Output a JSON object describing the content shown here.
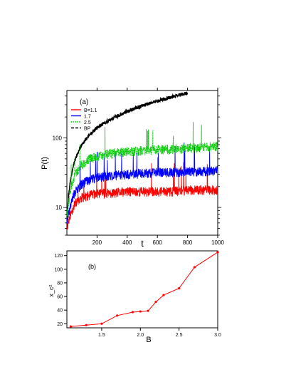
{
  "chart_data": [
    {
      "panel_label": "(a)",
      "type": "line",
      "xlabel": "t",
      "ylabel": "P(t)",
      "x_scale": "linear",
      "y_scale": "log",
      "xlim": [
        0,
        1000
      ],
      "ylim": [
        4,
        480
      ],
      "x_ticks": [
        200,
        400,
        600,
        800,
        1000
      ],
      "y_ticks_labeled": [
        10,
        100
      ],
      "grid": false,
      "legend_position": "top-left",
      "series": [
        {
          "name": "B=1.1",
          "color": "#ff0000",
          "style": "solid",
          "x": [
            0,
            50,
            100,
            150,
            200,
            300,
            400,
            500,
            600,
            700,
            800,
            900,
            1000
          ],
          "y": [
            5,
            11,
            14,
            15,
            16,
            16,
            17,
            17,
            17,
            17,
            18,
            18,
            18
          ]
        },
        {
          "name": "1.7",
          "color": "#0000ff",
          "style": "solid",
          "x": [
            0,
            50,
            100,
            150,
            200,
            300,
            400,
            500,
            600,
            700,
            800,
            900,
            1000
          ],
          "y": [
            6,
            16,
            22,
            25,
            27,
            29,
            30,
            31,
            32,
            32,
            33,
            33,
            34
          ]
        },
        {
          "name": "2.5",
          "color": "#00cc00",
          "style": "dotted",
          "x": [
            0,
            50,
            100,
            150,
            200,
            300,
            400,
            500,
            600,
            700,
            800,
            900,
            1000
          ],
          "y": [
            7,
            28,
            42,
            50,
            55,
            60,
            64,
            66,
            68,
            70,
            72,
            74,
            76
          ]
        },
        {
          "name": "BP",
          "color": "#000000",
          "style": "dashed",
          "x": [
            0,
            25,
            50,
            100,
            150,
            200,
            300,
            400,
            500,
            600,
            700,
            800
          ],
          "y": [
            6,
            25,
            45,
            80,
            110,
            140,
            190,
            240,
            290,
            340,
            390,
            440
          ]
        }
      ]
    },
    {
      "panel_label": "(b)",
      "type": "line",
      "xlabel": "B",
      "ylabel": "x_c²",
      "xlim": [
        1.05,
        3.0
      ],
      "ylim": [
        14,
        127
      ],
      "x_ticks": [
        "1.5",
        "2.0",
        "2.5",
        "3.0"
      ],
      "y_ticks": [
        "20",
        "40",
        "60",
        "80",
        "100",
        "120"
      ],
      "grid": false,
      "series": [
        {
          "color": "#ff0000",
          "x": [
            1.1,
            1.3,
            1.5,
            1.7,
            1.9,
            2.0,
            2.1,
            2.2,
            2.3,
            2.5,
            2.7,
            3.0
          ],
          "y": [
            16,
            18,
            20,
            32,
            37,
            38,
            39,
            52,
            62,
            72,
            103,
            125
          ]
        }
      ]
    }
  ]
}
